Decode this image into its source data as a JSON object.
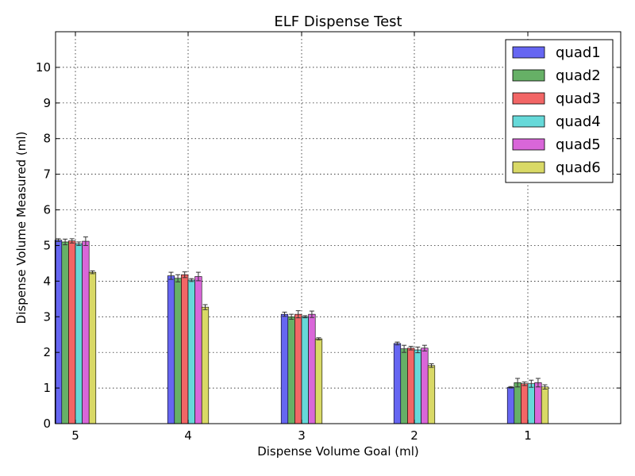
{
  "chart_data": {
    "type": "bar",
    "title": "ELF Dispense Test",
    "xlabel": "Dispense Volume Goal (ml)",
    "ylabel": "Dispense Volume Measured (ml)",
    "categories": [
      "5",
      "4",
      "3",
      "2",
      "1"
    ],
    "ylim": [
      0,
      11
    ],
    "yticks": [
      0,
      1,
      2,
      3,
      4,
      5,
      6,
      7,
      8,
      9,
      10
    ],
    "grid": true,
    "legend_position": "top-right",
    "series": [
      {
        "name": "quad1",
        "color": "#6666f2",
        "values": [
          5.15,
          4.15,
          3.07,
          2.25,
          1.02
        ],
        "errors": [
          0.04,
          0.1,
          0.06,
          0.04,
          0.02
        ]
      },
      {
        "name": "quad2",
        "color": "#66b066",
        "values": [
          5.1,
          4.08,
          3.0,
          2.1,
          1.15
        ],
        "errors": [
          0.08,
          0.1,
          0.07,
          0.1,
          0.12
        ]
      },
      {
        "name": "quad3",
        "color": "#f26666",
        "values": [
          5.13,
          4.18,
          3.07,
          2.12,
          1.12
        ],
        "errors": [
          0.06,
          0.08,
          0.1,
          0.05,
          0.05
        ]
      },
      {
        "name": "quad4",
        "color": "#66d9d9",
        "values": [
          5.05,
          4.03,
          3.0,
          2.07,
          1.12
        ],
        "errors": [
          0.05,
          0.04,
          0.03,
          0.08,
          0.1
        ]
      },
      {
        "name": "quad5",
        "color": "#d966d9",
        "values": [
          5.12,
          4.13,
          3.07,
          2.12,
          1.15
        ],
        "errors": [
          0.12,
          0.12,
          0.09,
          0.08,
          0.12
        ]
      },
      {
        "name": "quad6",
        "color": "#d9d966",
        "values": [
          4.25,
          3.27,
          2.38,
          1.63,
          1.03
        ],
        "errors": [
          0.04,
          0.07,
          0.03,
          0.05,
          0.06
        ]
      }
    ]
  }
}
